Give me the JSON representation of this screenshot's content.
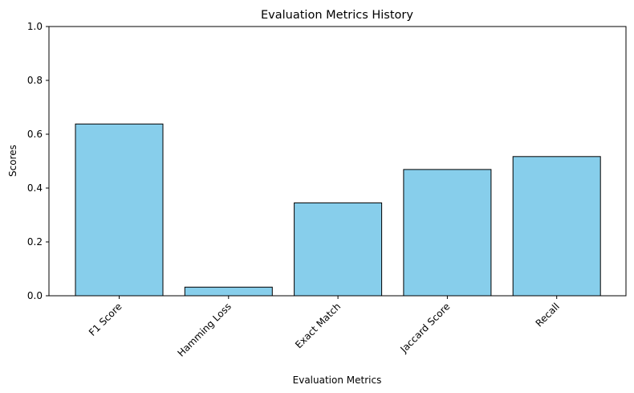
{
  "chart_data": {
    "type": "bar",
    "title": "Evaluation Metrics History",
    "xlabel": "Evaluation Metrics",
    "ylabel": "Scores",
    "categories": [
      "F1 Score",
      "Hamming Loss",
      "Exact Match",
      "Jaccard Score",
      "Recall"
    ],
    "values": [
      0.638,
      0.032,
      0.345,
      0.469,
      0.517
    ],
    "ylim": [
      0,
      1
    ],
    "yticks": [
      "0.0",
      "0.2",
      "0.4",
      "0.6",
      "0.8",
      "1.0"
    ],
    "bar_color": "#87CEEB",
    "edge_color": "#000000",
    "grid": false,
    "legend": "none"
  }
}
